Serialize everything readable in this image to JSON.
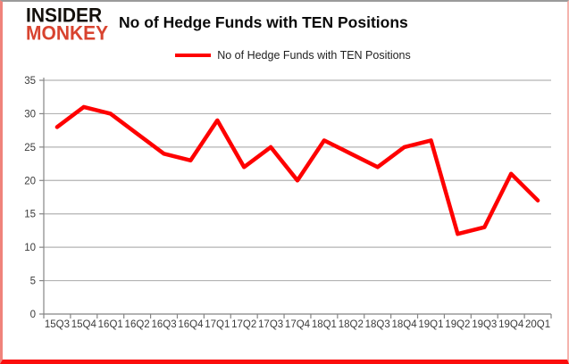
{
  "header": {
    "logo_line1": "INSIDER",
    "logo_line2": "MONKEY",
    "title": "No of Hedge Funds with TEN Positions"
  },
  "legend": {
    "label": "No of Hedge Funds with TEN Positions"
  },
  "chart_data": {
    "type": "line",
    "title": "No of Hedge Funds with TEN Positions",
    "categories": [
      "15Q3",
      "15Q4",
      "16Q1",
      "16Q2",
      "16Q3",
      "16Q4",
      "17Q1",
      "17Q2",
      "17Q3",
      "17Q4",
      "18Q1",
      "18Q2",
      "18Q3",
      "18Q4",
      "19Q1",
      "19Q2",
      "19Q3",
      "19Q4",
      "20Q1"
    ],
    "series": [
      {
        "name": "No of Hedge Funds with TEN Positions",
        "color": "#fe0000",
        "values": [
          28,
          31,
          30,
          27,
          24,
          23,
          29,
          22,
          25,
          20,
          26,
          24,
          22,
          25,
          26,
          12,
          13,
          21,
          17
        ]
      }
    ],
    "xlabel": "",
    "ylabel": "",
    "ylim": [
      0,
      35
    ],
    "ytick_interval": 5,
    "grid": true,
    "legend_position": "top"
  },
  "colors": {
    "line": "#fe0000",
    "logo_black": "#14100b",
    "logo_red": "#d8432f",
    "grid": "#b3b3b3",
    "axis": "#858585",
    "tick_text": "#3b3b3b"
  }
}
